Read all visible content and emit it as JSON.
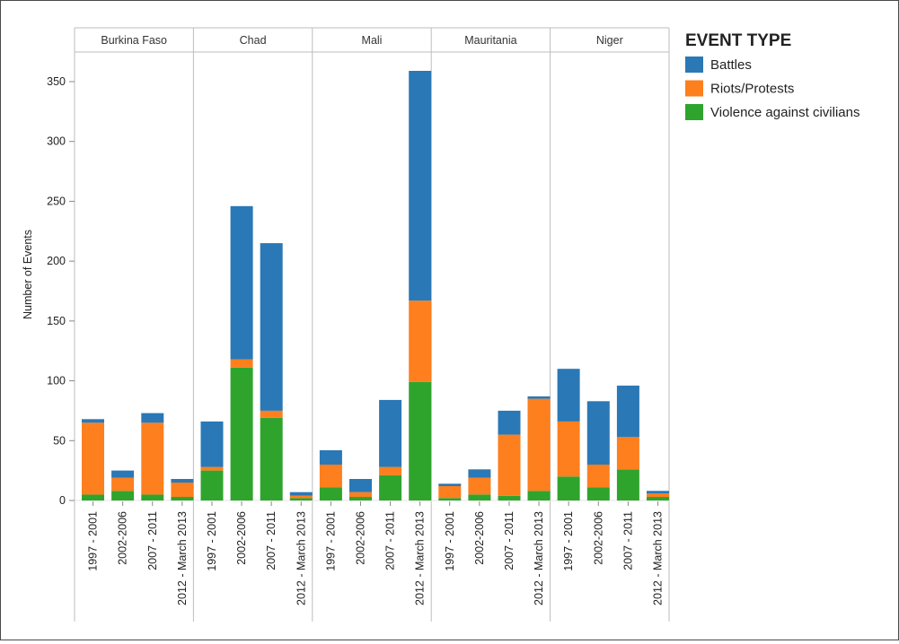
{
  "chart_data": {
    "type": "bar",
    "stacked": true,
    "title": "",
    "xlabel": "",
    "ylabel": "Number of Events",
    "ylim": [
      0,
      370
    ],
    "yticks": [
      0,
      50,
      100,
      150,
      200,
      250,
      300,
      350
    ],
    "grid": false,
    "legend": {
      "title": "EVENT TYPE",
      "position": "right",
      "entries": [
        "Battles",
        "Riots/Protests",
        "Violence against civilians"
      ]
    },
    "stack_order": [
      "Violence against civilians",
      "Riots/Protests",
      "Battles"
    ],
    "colors": {
      "Battles": "#2a78b6",
      "Riots/Protests": "#fd7f1e",
      "Violence against civilians": "#2fa42d"
    },
    "periods": [
      "1997 - 2001",
      "2002-2006",
      "2007 - 2011",
      "2012 - March 2013"
    ],
    "panels": [
      {
        "country": "Burkina Faso",
        "series": [
          {
            "name": "Violence against civilians",
            "values": [
              5,
              8,
              5,
              3
            ]
          },
          {
            "name": "Riots/Protests",
            "values": [
              60,
              11,
              60,
              12
            ]
          },
          {
            "name": "Battles",
            "values": [
              3,
              6,
              8,
              3
            ]
          }
        ]
      },
      {
        "country": "Chad",
        "series": [
          {
            "name": "Violence against civilians",
            "values": [
              25,
              111,
              69,
              2
            ]
          },
          {
            "name": "Riots/Protests",
            "values": [
              3,
              7,
              6,
              2
            ]
          },
          {
            "name": "Battles",
            "values": [
              38,
              128,
              140,
              3
            ]
          }
        ]
      },
      {
        "country": "Mali",
        "series": [
          {
            "name": "Violence against civilians",
            "values": [
              11,
              3,
              21,
              99
            ]
          },
          {
            "name": "Riots/Protests",
            "values": [
              19,
              4,
              7,
              68
            ]
          },
          {
            "name": "Battles",
            "values": [
              12,
              11,
              56,
              192
            ]
          }
        ]
      },
      {
        "country": "Mauritania",
        "series": [
          {
            "name": "Violence against civilians",
            "values": [
              2,
              5,
              4,
              8
            ]
          },
          {
            "name": "Riots/Protests",
            "values": [
              10,
              14,
              51,
              77
            ]
          },
          {
            "name": "Battles",
            "values": [
              2,
              7,
              20,
              2
            ]
          }
        ]
      },
      {
        "country": "Niger",
        "series": [
          {
            "name": "Violence against civilians",
            "values": [
              20,
              11,
              26,
              3
            ]
          },
          {
            "name": "Riots/Protests",
            "values": [
              46,
              19,
              27,
              3
            ]
          },
          {
            "name": "Battles",
            "values": [
              44,
              53,
              43,
              2
            ]
          }
        ]
      }
    ]
  }
}
